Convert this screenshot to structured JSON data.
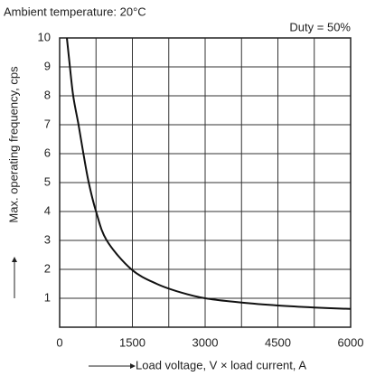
{
  "chart_data": {
    "type": "line",
    "title": "Ambient temperature: 20°C",
    "annotation": "Duty = 50%",
    "xlabel": "Load voltage, V × load current, A",
    "ylabel": "Max. operating frequency, cps",
    "x": [
      150,
      200,
      280,
      390,
      490,
      600,
      750,
      970,
      1480,
      2000,
      2500,
      3000,
      3750,
      4500,
      5250,
      6000
    ],
    "series": [
      {
        "name": "Duty 50%",
        "color": "#111111",
        "values": [
          10,
          9.2,
          8,
          7,
          6,
          5,
          4,
          3,
          2,
          1.5,
          1.2,
          1,
          0.85,
          0.75,
          0.68,
          0.63
        ]
      }
    ],
    "xlim": [
      0,
      6000
    ],
    "xticks": [
      0,
      1500,
      3000,
      4500,
      6000
    ],
    "x_minor_grid": [
      750,
      2250,
      3750,
      5250
    ],
    "ylim": [
      0,
      10
    ],
    "yticks": [
      1,
      2,
      3,
      4,
      5,
      6,
      7,
      8,
      9,
      10
    ],
    "grid": true
  }
}
